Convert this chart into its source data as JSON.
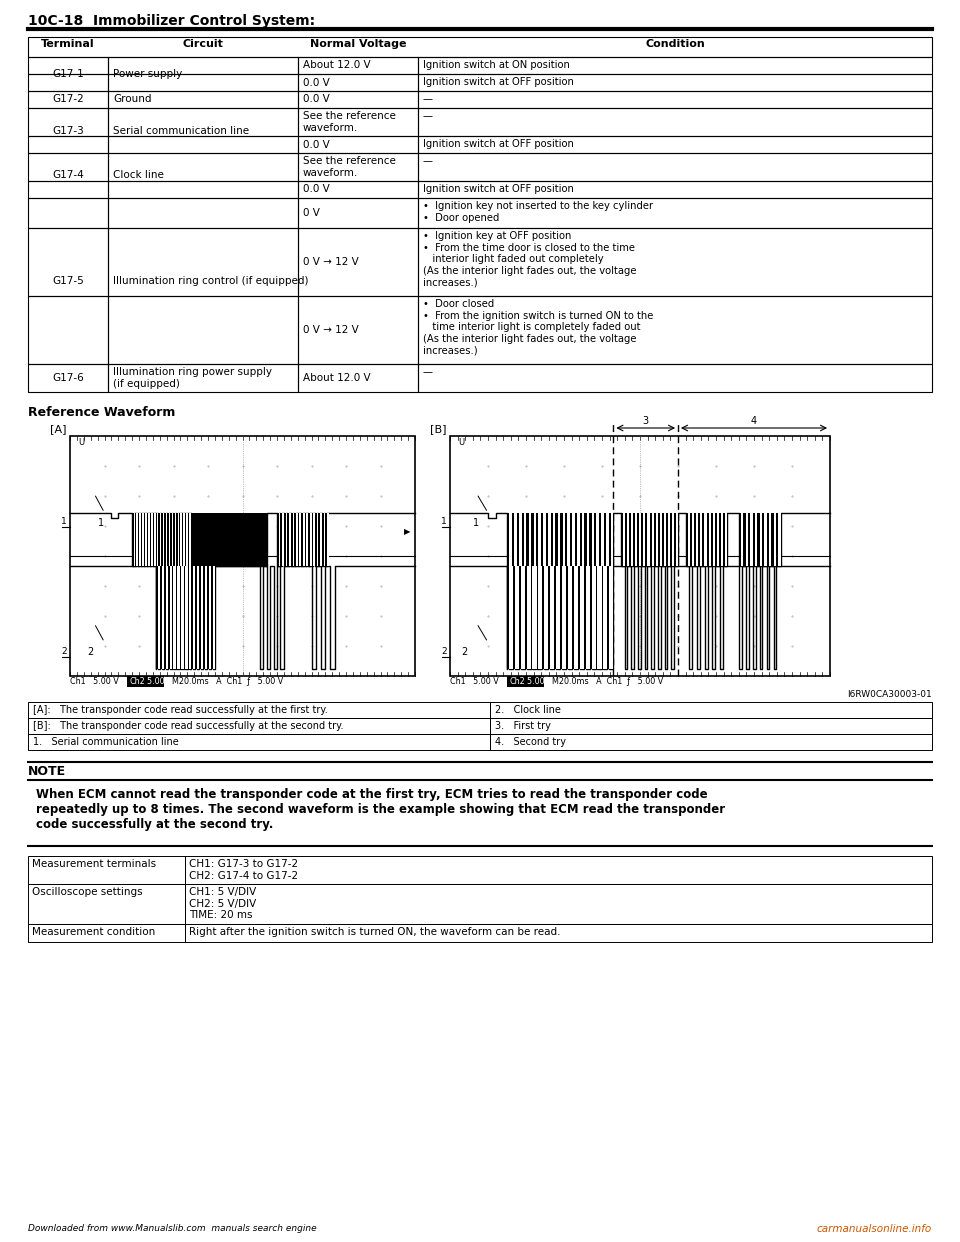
{
  "page_header": "10C-18  Immobilizer Control System:",
  "table_headers": [
    "Terminal",
    "Circuit",
    "Normal Voltage",
    "Condition"
  ],
  "ref_waveform_title": "Reference Waveform",
  "waveform_label_A": "[A]",
  "waveform_label_B": "[B]",
  "image_ref": "I6RW0CA30003-01",
  "legend_rows": [
    [
      "[A]:   The transponder code read successfully at the first try.",
      "2.   Clock line"
    ],
    [
      "[B]:   The transponder code read successfully at the second try.",
      "3.   First try"
    ],
    [
      "1.   Serial communication line",
      "4.   Second try"
    ]
  ],
  "note_title": "NOTE",
  "note_text": "When ECM cannot read the transponder code at the first try, ECM tries to read the transponder code\nrepeatedly up to 8 times. The second waveform is the example showing that ECM read the transponder\ncode successfully at the second try.",
  "meas_table": [
    [
      "Measurement terminals",
      "CH1: G17-3 to G17-2\nCH2: G17-4 to G17-2"
    ],
    [
      "Oscilloscope settings",
      "CH1: 5 V/DIV\nCH2: 5 V/DIV\nTIME: 20 ms"
    ],
    [
      "Measurement condition",
      "Right after the ignition switch is turned ON, the waveform can be read."
    ]
  ],
  "footer_left": "Downloaded from www.Manualslib.com  manuals search engine",
  "footer_right": "carmanualsonline.info",
  "bg_color": "#ffffff"
}
